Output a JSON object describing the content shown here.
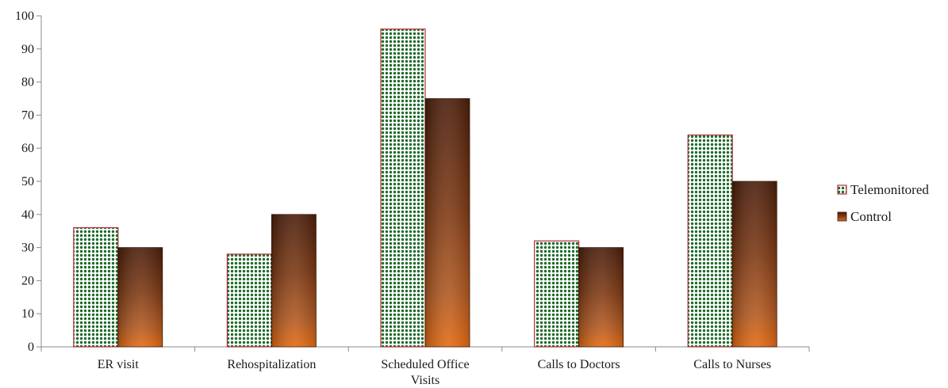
{
  "chart_data": {
    "type": "bar",
    "title": "",
    "xlabel": "",
    "ylabel": "",
    "categories": [
      [
        "ER visit"
      ],
      [
        "Rehospitalization"
      ],
      [
        "Scheduled Office",
        "Visits"
      ],
      [
        "Calls to Doctors"
      ],
      [
        "Calls to Nurses"
      ]
    ],
    "series": [
      {
        "name": "Telemonitored",
        "values": [
          36,
          28,
          96,
          32,
          64
        ],
        "color": "#1e6b2a"
      },
      {
        "name": "Control",
        "values": [
          30,
          40,
          75,
          30,
          50
        ],
        "color": "#7a3a14"
      }
    ],
    "ylim": [
      0,
      100
    ],
    "yticks": [
      0,
      10,
      20,
      30,
      40,
      50,
      60,
      70,
      80,
      90,
      100
    ],
    "grid": false,
    "legend_position": "right"
  }
}
